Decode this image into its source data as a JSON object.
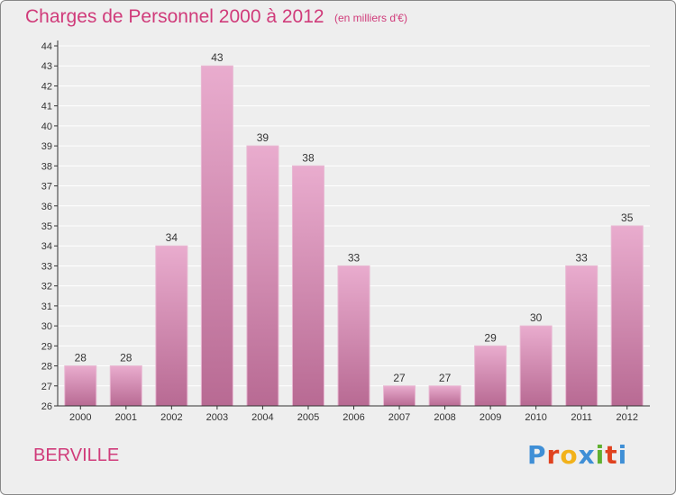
{
  "header": {
    "title": "Charges de Personnel 2000 à 2012",
    "subtitle": "(en milliers d'€)"
  },
  "footer": {
    "town": "BERVILLE",
    "logo": "Proxiti",
    "logo_colors": [
      "#3f8fd6",
      "#e0421f",
      "#f2b21a",
      "#3f8fd6",
      "#60b030",
      "#e0421f",
      "#3f8fd6"
    ]
  },
  "colors": {
    "accent": "#d03b7a",
    "bar": "#c9749f",
    "bar_light": "#e7a8ca",
    "grid": "#ffffff",
    "background": "#eeeeee"
  },
  "chart_data": {
    "type": "bar",
    "title": "Charges de Personnel 2000 à 2012",
    "subtitle": "(en milliers d'€)",
    "categories": [
      "2000",
      "2001",
      "2002",
      "2003",
      "2004",
      "2005",
      "2006",
      "2007",
      "2008",
      "2009",
      "2010",
      "2011",
      "2012"
    ],
    "values": [
      28,
      28,
      34,
      43,
      39,
      38,
      33,
      27,
      27,
      29,
      30,
      33,
      35
    ],
    "ylim": [
      26,
      44
    ],
    "yticks": [
      26,
      27,
      28,
      29,
      30,
      31,
      32,
      33,
      34,
      35,
      36,
      37,
      38,
      39,
      40,
      41,
      42,
      43,
      44
    ],
    "grid": true,
    "data_labels": true
  }
}
